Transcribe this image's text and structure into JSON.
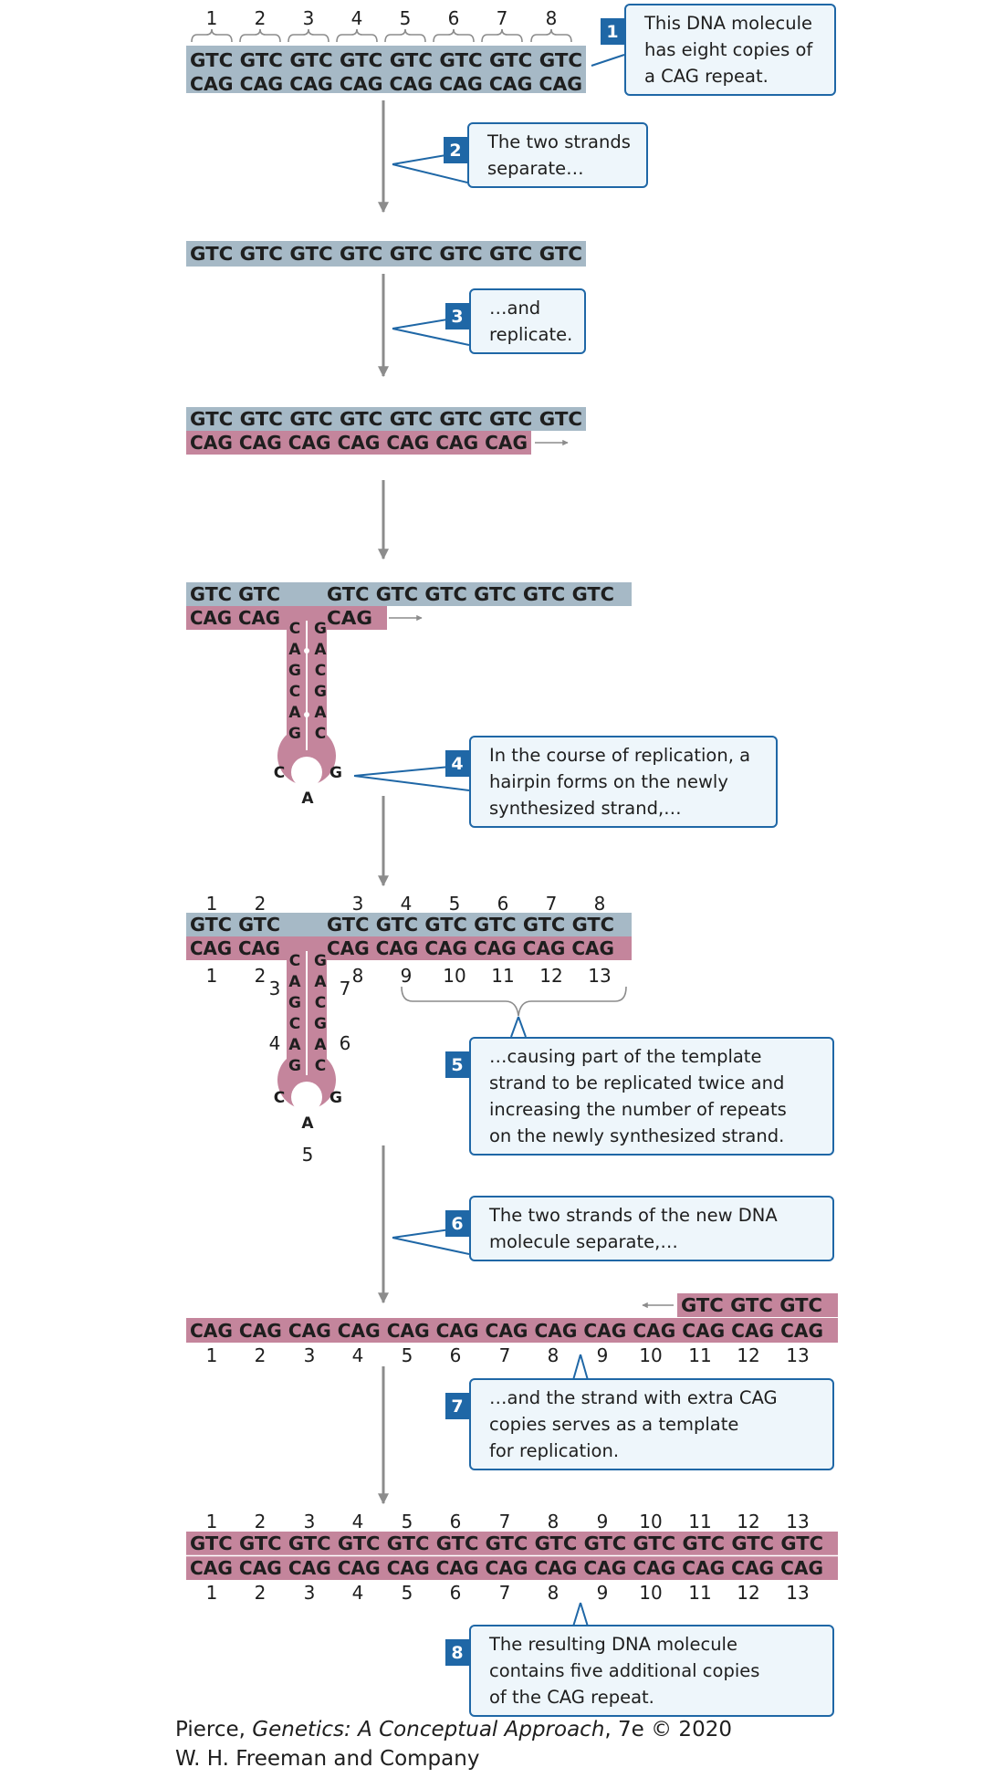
{
  "colors": {
    "template_strand": "#a6b9c6",
    "new_strand": "#c4859c",
    "callout_border": "#1f67a6",
    "callout_fill": "#eef6fb",
    "badge": "#1f67a6",
    "arrow": "#8c8c8c"
  },
  "panels": {
    "top": {
      "numbers": [
        "1",
        "2",
        "3",
        "4",
        "5",
        "6",
        "7",
        "8"
      ],
      "strand_top": "GTC GTC GTC GTC GTC GTC GTC GTC",
      "strand_bottom": "CAG CAG CAG CAG CAG CAG CAG CAG"
    },
    "separated": {
      "strand": "GTC GTC GTC GTC GTC GTC GTC GTC"
    },
    "replicating": {
      "strand_top": "GTC GTC GTC GTC GTC GTC GTC GTC",
      "strand_bottom": "CAG CAG CAG CAG CAG CAG CAG"
    },
    "hairpin1": {
      "top_left": "GTC GTC",
      "top_right": "GTC GTC GTC GTC GTC GTC",
      "bottom_left": "CAG CAG",
      "bottom_right": "CAG",
      "left_arm": [
        "C",
        "A",
        "G",
        "C",
        "A",
        "G"
      ],
      "right_arm": [
        "G",
        "A",
        "C",
        "G",
        "A",
        "C"
      ],
      "loop_left": "C",
      "loop_right": "G",
      "loop_bottom": "A"
    },
    "hairpin2": {
      "top_numbers": [
        "1",
        "2",
        "3",
        "4",
        "5",
        "6",
        "7",
        "8"
      ],
      "top_left": "GTC GTC",
      "top_right": "GTC GTC GTC GTC GTC GTC",
      "bottom_left": "CAG CAG",
      "bottom_right": "CAG CAG CAG CAG CAG CAG",
      "bottom_numbers": [
        "1",
        "2",
        "8",
        "9",
        "10",
        "11",
        "12",
        "13"
      ],
      "arm_numbers": [
        "3",
        "7",
        "4",
        "6",
        "5"
      ],
      "left_arm": [
        "C",
        "A",
        "G",
        "C",
        "A",
        "G"
      ],
      "right_arm": [
        "G",
        "A",
        "C",
        "G",
        "A",
        "C"
      ],
      "loop_left": "C",
      "loop_right": "G",
      "loop_bottom": "A"
    },
    "new_molecule": {
      "short_strand": "GTC GTC GTC",
      "long_strand": "CAG CAG CAG CAG CAG CAG CAG CAG CAG CAG CAG CAG CAG",
      "numbers": [
        "1",
        "2",
        "3",
        "4",
        "5",
        "6",
        "7",
        "8",
        "9",
        "10",
        "11",
        "12",
        "13"
      ]
    },
    "final": {
      "top_numbers": [
        "1",
        "2",
        "3",
        "4",
        "5",
        "6",
        "7",
        "8",
        "9",
        "10",
        "11",
        "12",
        "13"
      ],
      "strand_top": "GTC GTC GTC GTC GTC GTC GTC GTC GTC GTC GTC GTC GTC",
      "strand_bottom": "CAG CAG CAG CAG CAG CAG CAG CAG CAG CAG CAG CAG CAG",
      "bottom_numbers": [
        "1",
        "2",
        "3",
        "4",
        "5",
        "6",
        "7",
        "8",
        "9",
        "10",
        "11",
        "12",
        "13"
      ]
    }
  },
  "callouts": [
    {
      "number": "1",
      "lines": [
        "This DNA molecule",
        "has eight copies of",
        "a CAG repeat."
      ]
    },
    {
      "number": "2",
      "lines": [
        "The two strands",
        "separate…"
      ]
    },
    {
      "number": "3",
      "lines": [
        "…and",
        "replicate."
      ]
    },
    {
      "number": "4",
      "lines": [
        "In the course of replication, a",
        "hairpin forms on the newly",
        "synthesized strand,…"
      ]
    },
    {
      "number": "5",
      "lines": [
        "…causing part of the template",
        "strand to be replicated twice and",
        "increasing the number of repeats",
        "on the newly synthesized strand."
      ]
    },
    {
      "number": "6",
      "lines": [
        "The two strands of the new DNA",
        "molecule separate,…"
      ]
    },
    {
      "number": "7",
      "lines": [
        "…and the strand with extra CAG",
        "copies serves as a template",
        "for replication."
      ]
    },
    {
      "number": "8",
      "lines": [
        "The resulting DNA molecule",
        "contains five additional copies",
        "of the CAG repeat."
      ]
    }
  ],
  "credit": {
    "author": "Pierce, ",
    "title": "Genetics: A Conceptual Approach",
    "edition": ", 7e © 2020",
    "publisher": "W. H. Freeman and Company"
  }
}
